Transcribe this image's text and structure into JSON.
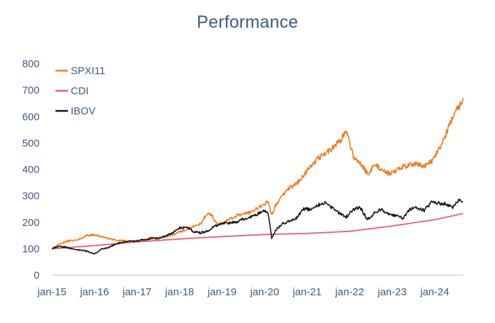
{
  "chart_data": {
    "type": "line",
    "title": "Performance",
    "xlabel": "",
    "ylabel": "",
    "ylim": [
      0,
      800
    ],
    "yticks": [
      0,
      100,
      200,
      300,
      400,
      500,
      600,
      700,
      800
    ],
    "xlim": [
      "2015-01",
      "2024-09"
    ],
    "xticks": [
      "jan-15",
      "jan-16",
      "jan-17",
      "jan-18",
      "jan-19",
      "jan-20",
      "jan-21",
      "jan-22",
      "jan-23",
      "jan-24"
    ],
    "grid": false,
    "legend_position": "top-left",
    "series": [
      {
        "name": "SPXI11",
        "color": "#f07a1a",
        "points": [
          [
            "2015-01",
            100
          ],
          [
            "2015-03",
            118
          ],
          [
            "2015-05",
            128
          ],
          [
            "2015-07",
            132
          ],
          [
            "2015-09",
            138
          ],
          [
            "2015-11",
            150
          ],
          [
            "2016-01",
            152
          ],
          [
            "2016-03",
            145
          ],
          [
            "2016-05",
            138
          ],
          [
            "2016-07",
            133
          ],
          [
            "2016-09",
            130
          ],
          [
            "2016-11",
            128
          ],
          [
            "2017-01",
            128
          ],
          [
            "2017-03",
            132
          ],
          [
            "2017-05",
            138
          ],
          [
            "2017-07",
            140
          ],
          [
            "2017-09",
            145
          ],
          [
            "2017-11",
            152
          ],
          [
            "2018-01",
            165
          ],
          [
            "2018-03",
            172
          ],
          [
            "2018-05",
            185
          ],
          [
            "2018-07",
            195
          ],
          [
            "2018-08",
            218
          ],
          [
            "2018-09",
            232
          ],
          [
            "2018-10",
            228
          ],
          [
            "2018-11",
            205
          ],
          [
            "2018-12",
            192
          ],
          [
            "2019-01",
            198
          ],
          [
            "2019-03",
            210
          ],
          [
            "2019-05",
            225
          ],
          [
            "2019-07",
            232
          ],
          [
            "2019-09",
            238
          ],
          [
            "2019-11",
            255
          ],
          [
            "2020-01",
            270
          ],
          [
            "2020-02",
            280
          ],
          [
            "2020-03",
            225
          ],
          [
            "2020-04",
            262
          ],
          [
            "2020-06",
            300
          ],
          [
            "2020-08",
            330
          ],
          [
            "2020-10",
            345
          ],
          [
            "2020-12",
            380
          ],
          [
            "2021-02",
            410
          ],
          [
            "2021-04",
            440
          ],
          [
            "2021-06",
            460
          ],
          [
            "2021-08",
            480
          ],
          [
            "2021-10",
            505
          ],
          [
            "2021-12",
            540
          ],
          [
            "2022-01",
            500
          ],
          [
            "2022-02",
            450
          ],
          [
            "2022-04",
            420
          ],
          [
            "2022-06",
            385
          ],
          [
            "2022-07",
            400
          ],
          [
            "2022-08",
            420
          ],
          [
            "2022-10",
            400
          ],
          [
            "2022-12",
            385
          ],
          [
            "2023-02",
            395
          ],
          [
            "2023-04",
            410
          ],
          [
            "2023-06",
            418
          ],
          [
            "2023-08",
            420
          ],
          [
            "2023-10",
            412
          ],
          [
            "2023-12",
            430
          ],
          [
            "2024-02",
            470
          ],
          [
            "2024-04",
            530
          ],
          [
            "2024-06",
            600
          ],
          [
            "2024-08",
            640
          ],
          [
            "2024-09",
            670
          ]
        ]
      },
      {
        "name": "CDI",
        "color": "#e85a7a",
        "points": [
          [
            "2015-01",
            100
          ],
          [
            "2016-01",
            112
          ],
          [
            "2017-01",
            126
          ],
          [
            "2018-01",
            137
          ],
          [
            "2019-01",
            146
          ],
          [
            "2020-01",
            154
          ],
          [
            "2021-01",
            158
          ],
          [
            "2022-01",
            166
          ],
          [
            "2023-01",
            186
          ],
          [
            "2024-01",
            210
          ],
          [
            "2024-09",
            233
          ]
        ]
      },
      {
        "name": "IBOV",
        "color": "#141414",
        "points": [
          [
            "2015-01",
            100
          ],
          [
            "2015-03",
            110
          ],
          [
            "2015-05",
            105
          ],
          [
            "2015-07",
            100
          ],
          [
            "2015-09",
            95
          ],
          [
            "2015-11",
            90
          ],
          [
            "2016-01",
            80
          ],
          [
            "2016-03",
            98
          ],
          [
            "2016-05",
            105
          ],
          [
            "2016-07",
            118
          ],
          [
            "2016-09",
            125
          ],
          [
            "2016-11",
            128
          ],
          [
            "2017-01",
            130
          ],
          [
            "2017-03",
            135
          ],
          [
            "2017-05",
            140
          ],
          [
            "2017-07",
            138
          ],
          [
            "2017-09",
            148
          ],
          [
            "2017-11",
            160
          ],
          [
            "2018-01",
            178
          ],
          [
            "2018-03",
            182
          ],
          [
            "2018-05",
            165
          ],
          [
            "2018-07",
            160
          ],
          [
            "2018-09",
            168
          ],
          [
            "2018-11",
            185
          ],
          [
            "2019-01",
            195
          ],
          [
            "2019-03",
            198
          ],
          [
            "2019-05",
            200
          ],
          [
            "2019-07",
            212
          ],
          [
            "2019-09",
            220
          ],
          [
            "2019-11",
            232
          ],
          [
            "2020-01",
            245
          ],
          [
            "2020-02",
            230
          ],
          [
            "2020-03",
            140
          ],
          [
            "2020-04",
            170
          ],
          [
            "2020-06",
            195
          ],
          [
            "2020-08",
            205
          ],
          [
            "2020-10",
            215
          ],
          [
            "2020-12",
            250
          ],
          [
            "2021-02",
            250
          ],
          [
            "2021-04",
            265
          ],
          [
            "2021-06",
            275
          ],
          [
            "2021-08",
            255
          ],
          [
            "2021-10",
            235
          ],
          [
            "2021-12",
            220
          ],
          [
            "2022-02",
            250
          ],
          [
            "2022-04",
            255
          ],
          [
            "2022-06",
            210
          ],
          [
            "2022-08",
            235
          ],
          [
            "2022-10",
            250
          ],
          [
            "2022-12",
            230
          ],
          [
            "2023-02",
            225
          ],
          [
            "2023-04",
            215
          ],
          [
            "2023-06",
            250
          ],
          [
            "2023-08",
            255
          ],
          [
            "2023-10",
            245
          ],
          [
            "2023-12",
            275
          ],
          [
            "2024-02",
            272
          ],
          [
            "2024-04",
            270
          ],
          [
            "2024-06",
            258
          ],
          [
            "2024-08",
            285
          ],
          [
            "2024-09",
            278
          ]
        ]
      }
    ]
  }
}
